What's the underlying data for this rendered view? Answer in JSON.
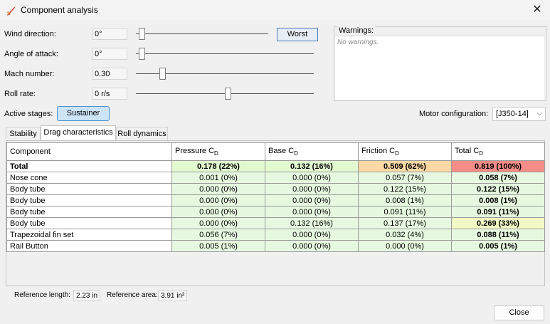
{
  "window": {
    "title": "Component analysis"
  },
  "controls": {
    "wind_direction": {
      "label": "Wind direction:",
      "value": "0°",
      "slider_fraction": 0.0
    },
    "angle_of_attack": {
      "label": "Angle of attack:",
      "value": "0°",
      "slider_fraction": 0.0
    },
    "mach_number": {
      "label": "Mach number:",
      "value": "0.30",
      "slider_fraction": 0.12
    },
    "roll_rate": {
      "label": "Roll rate:",
      "value": "0 r/s",
      "slider_fraction": 0.5
    },
    "worst_button": "Worst"
  },
  "warnings": {
    "title": "Warnings:",
    "text": "No warnings."
  },
  "stages": {
    "label": "Active stages:",
    "button": "Sustainer"
  },
  "motor": {
    "label": "Motor configuration:",
    "value": "[J350-14]"
  },
  "tabs": [
    "Stability",
    "Drag characteristics",
    "Roll dynamics"
  ],
  "table": {
    "headers": [
      "Component",
      "Pressure C",
      "Base C",
      "Friction C",
      "Total C"
    ],
    "header_sub": "D",
    "rows": [
      {
        "name": "Total",
        "cells": [
          "0.178 (22%)",
          "0.132 (16%)",
          "0.509 (62%)",
          "0.819 (100%)"
        ],
        "colors": [
          "#e2f9d0",
          "#e2f9d0",
          "#fcd9a4",
          "#f48c87"
        ]
      },
      {
        "name": "Nose cone",
        "cells": [
          "0.001 (0%)",
          "0.000 (0%)",
          "0.057 (7%)",
          "0.058 (7%)"
        ],
        "colors": [
          "#e6f9e0",
          "#e6f9e0",
          "#e6f9e0",
          "#e6f9e0"
        ]
      },
      {
        "name": "Body tube",
        "cells": [
          "0.000 (0%)",
          "0.000 (0%)",
          "0.122 (15%)",
          "0.122 (15%)"
        ],
        "colors": [
          "#e6f9e0",
          "#e6f9e0",
          "#e6f9e0",
          "#e6f9e0"
        ]
      },
      {
        "name": "Body tube",
        "cells": [
          "0.000 (0%)",
          "0.000 (0%)",
          "0.008 (1%)",
          "0.008 (1%)"
        ],
        "colors": [
          "#e6f9e0",
          "#e6f9e0",
          "#e6f9e0",
          "#e6f9e0"
        ]
      },
      {
        "name": "Body tube",
        "cells": [
          "0.000 (0%)",
          "0.000 (0%)",
          "0.091 (11%)",
          "0.091 (11%)"
        ],
        "colors": [
          "#e6f9e0",
          "#e6f9e0",
          "#e6f9e0",
          "#e6f9e0"
        ]
      },
      {
        "name": "Body tube",
        "cells": [
          "0.000 (0%)",
          "0.132 (16%)",
          "0.137 (17%)",
          "0.269 (33%)"
        ],
        "colors": [
          "#e6f9e0",
          "#e6f9e0",
          "#e6f9e0",
          "#f3f9c4"
        ]
      },
      {
        "name": "Trapezoidal fin set",
        "cells": [
          "0.056 (7%)",
          "0.000 (0%)",
          "0.032 (4%)",
          "0.088 (11%)"
        ],
        "colors": [
          "#e6f9e0",
          "#e6f9e0",
          "#e6f9e0",
          "#e6f9e0"
        ]
      },
      {
        "name": "Rail Button",
        "cells": [
          "0.005 (1%)",
          "0.000 (0%)",
          "0.000 (0%)",
          "0.005 (1%)"
        ],
        "colors": [
          "#e6f9e0",
          "#e6f9e0",
          "#e6f9e0",
          "#e6f9e0"
        ]
      }
    ]
  },
  "reference": {
    "length_label": "Reference length:",
    "length_value": "2.23 in",
    "area_label": "Reference area:",
    "area_value": "3.91 in²"
  },
  "close_button": "Close",
  "icons": {
    "app": "rocket-icon",
    "close": "close-icon",
    "combo_arrow": "chevron-down-icon"
  }
}
